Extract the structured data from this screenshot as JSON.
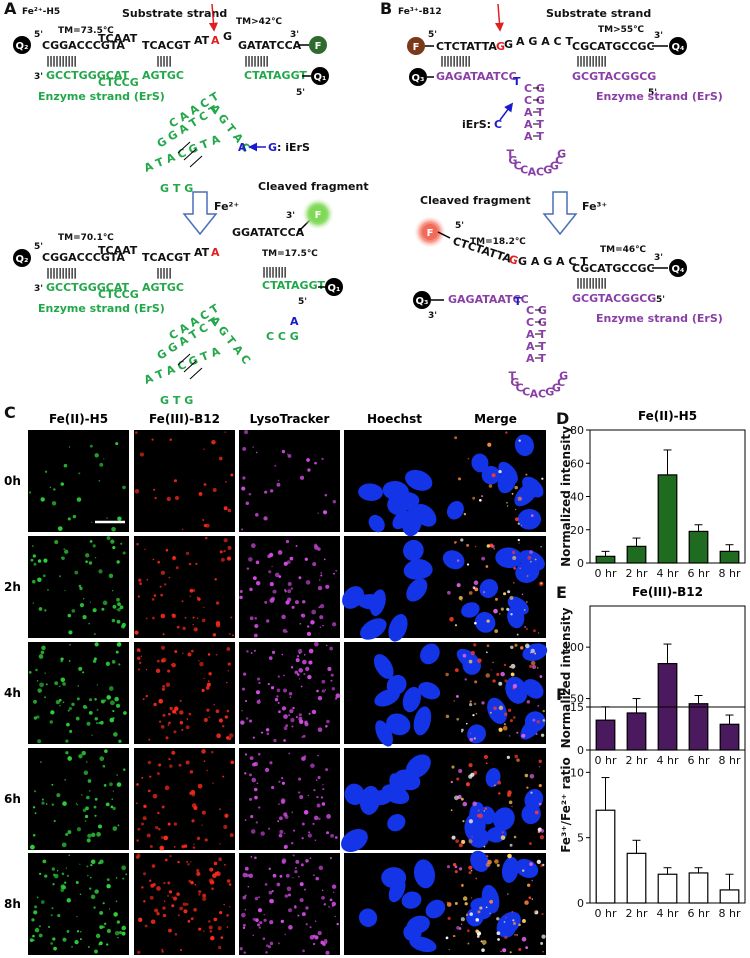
{
  "panel_a": {
    "label": "A",
    "title": "Fe²⁺-H5",
    "arrow_label": "Fe²⁺",
    "top": {
      "substrate_label": "Substrate strand",
      "tm_left": "TM=73.5℃",
      "tm_right": "TM>42℃",
      "q_left": "Q₂",
      "five_prime": "5'",
      "sub_left": "CGGACCCGTA",
      "sub_bulge": "TCAAT",
      "sub_mid": "TCACGT",
      "sub_at": "AT",
      "cleave": "A",
      "sub_g": "G",
      "sub_right": "GATATCCA",
      "three_prime": "3'",
      "fluor": "F",
      "pairs_left": "||||||||||",
      "pairs_mid": "|||||",
      "pairs_right": "||||||||",
      "enz_three": "3'",
      "enz_left": "GCCTGGGCAT",
      "enz_bulge": "CTCCG",
      "enz_mid": "AGTGC",
      "enz_right": "CTATAGGT",
      "q_right": "Q₁",
      "enz_five": "5'",
      "enzyme_label": "Enzyme strand (ErS)",
      "loop": [
        "C A A C T",
        "G G A T C T",
        "A G T A C",
        "A T A C G T A",
        "G T G"
      ],
      "loop_blue": "A",
      "iers_base": "G",
      "iers_label": ": iErS"
    },
    "bottom": {
      "tm": "TM=70.1℃",
      "q_left": "Q₂",
      "five_prime": "5'",
      "sub_left": "CGGACCCGTA",
      "sub_bulge": "TCAAT",
      "sub_mid": "TCACGT",
      "sub_at": "AT",
      "cleave": "A",
      "pairs_left": "||||||||||",
      "pairs_mid": "|||||",
      "pairs_right": "||||||||",
      "enz_three": "3'",
      "enz_left": "GCCTGGGCAT",
      "enz_bulge": "CTCCG",
      "enz_mid": "AGTGC",
      "enz_right": "CTATAGGT",
      "q_right": "Q₁",
      "enz_five": "5'",
      "enzyme_label": "Enzyme strand (ErS)",
      "loop": [
        "C A A C T",
        "G G A T C T",
        "A G T A C",
        "A T A C G T A",
        "G T G"
      ],
      "loop_blue": "A",
      "loop_tail": "C C G"
    },
    "cleaved": {
      "label": "Cleaved fragment",
      "three_prime": "3'",
      "fluor": "F",
      "seq": "GGATATCCA",
      "tm": "TM=17.5℃"
    }
  },
  "panel_b": {
    "label": "B",
    "title": "Fe³⁺-B12",
    "arrow_label": "Fe³⁺",
    "top": {
      "substrate_label": "Substrate strand",
      "tm": "TM>55℃",
      "fluor": "F",
      "five_prime": "5'",
      "sub_left": "CTCTATTA",
      "cleave": "G",
      "sub_g": "G",
      "sub_spaced": "A G A C T",
      "sub_right": "CGCATGCCGC",
      "three_prime": "3'",
      "q_right": "Q₄",
      "pairs_left": "||||||||||",
      "pairs_right": "||||||||||",
      "q_left": "Q₃",
      "enz_left": "GAGATAATCC",
      "loop_t": "T",
      "stem": [
        "C G",
        "C G",
        "A T",
        "A T",
        "A T"
      ],
      "loop": [
        "T",
        "G",
        "C",
        "C",
        "A",
        "C",
        "G",
        "G",
        "C",
        "G"
      ],
      "enz_right": "GCGTACGGCG",
      "enz_five": "5'",
      "enzyme_label": "Enzyme strand (ErS)",
      "iers_label": "iErS:",
      "iers_base": "C"
    },
    "bottom": {
      "tm": "TM=46℃",
      "sub_spaced": "G A G A C T",
      "sub_right": "CGCATGCCGC",
      "three_prime": "3'",
      "q_right": "Q₄",
      "pairs_right": "||||||||||",
      "q_left": "Q₃",
      "enz_three": "3'",
      "enz_left": "GAGATAATCC",
      "loop_t": "T",
      "stem": [
        "C G",
        "C G",
        "A T",
        "A T",
        "A T"
      ],
      "loop": [
        "T",
        "G",
        "C",
        "C",
        "A",
        "C",
        "G",
        "G",
        "C",
        "G"
      ],
      "enz_right": "GCGTACGGCG",
      "enz_five": "5'",
      "enzyme_label": "Enzyme strand (ErS)"
    },
    "cleaved": {
      "label": "Cleaved fragment",
      "fluor": "F",
      "five_prime": "5'",
      "tm": "TM=18.2℃",
      "seq": "CTCTATTA",
      "cleave": "G"
    }
  },
  "panel_c": {
    "label": "C",
    "columns": [
      "Fe(II)-H5",
      "Fe(III)-B12",
      "LysoTracker",
      "Hoechst",
      "Merge"
    ],
    "rows": [
      "0h",
      "2h",
      "4h",
      "6h",
      "8h"
    ]
  },
  "panel_labels": {
    "d": "D",
    "e": "E",
    "f": "F"
  },
  "chart_data": [
    {
      "type": "bar",
      "title": "Fe(II)-H5",
      "y_label": "Normalized intensity",
      "categories": [
        "0 hr",
        "2 hr",
        "4 hr",
        "6 hr",
        "8 hr"
      ],
      "values": [
        4,
        10,
        53,
        19,
        7
      ],
      "errors": [
        3,
        5,
        15,
        4,
        4
      ],
      "color": "#1f6b1f",
      "edgecolor": "#000000",
      "ylim": [
        0,
        80
      ],
      "yticks": [
        0,
        20,
        40,
        60,
        80
      ]
    },
    {
      "type": "bar",
      "title": "Fe(III)-B12",
      "y_label": "Normalized intensity",
      "categories": [
        "0 hr",
        "2 hr",
        "4 hr",
        "6 hr",
        "8 hr"
      ],
      "values": [
        29,
        36,
        84,
        45,
        25
      ],
      "errors": [
        13,
        14,
        19,
        8,
        9
      ],
      "color": "#4b1a5e",
      "edgecolor": "#000000",
      "ylim": [
        0,
        140
      ],
      "yticks": [
        0,
        50,
        100
      ]
    },
    {
      "type": "bar",
      "y_label": "Fe³⁺/Fe²⁺ ratio",
      "categories": [
        "0 hr",
        "2 hr",
        "4 hr",
        "6 hr",
        "8 hr"
      ],
      "values": [
        7.1,
        3.8,
        2.2,
        2.3,
        1.0
      ],
      "errors": [
        2.5,
        1.0,
        0.5,
        0.4,
        1.2
      ],
      "color": "#ffffff",
      "edgecolor": "#000000",
      "ylim": [
        0,
        15
      ],
      "yticks": [
        0,
        5,
        10,
        15
      ]
    }
  ]
}
